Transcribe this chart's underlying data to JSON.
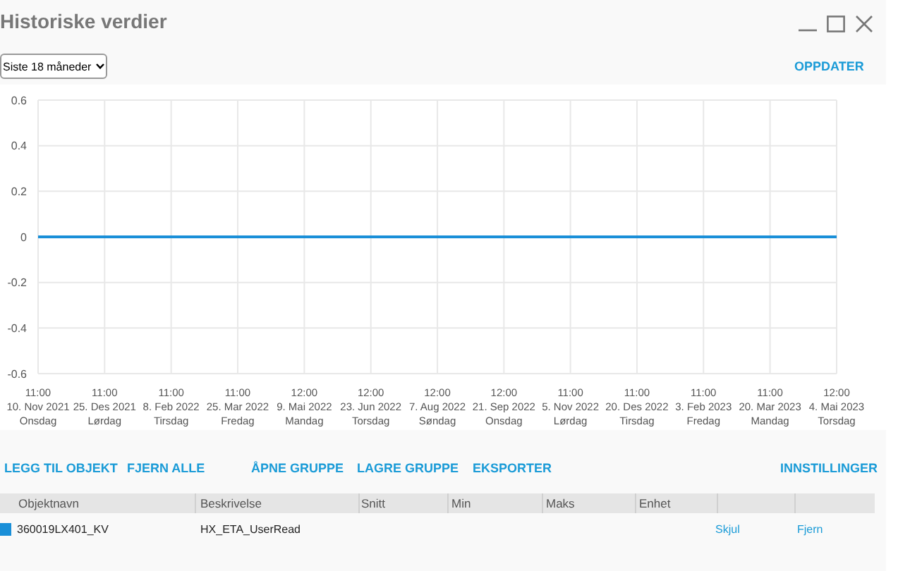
{
  "chart_data": {
    "type": "line",
    "title": "Historiske verdier",
    "x": [
      "2021-11-10T11:00",
      "2023-05-04T12:00"
    ],
    "series": [
      {
        "name": "360019LX401_KV",
        "color": "#1a8fd8",
        "values": [
          0,
          0
        ]
      }
    ],
    "xlim": [
      "2021-11-10T11:00",
      "2023-05-04T12:00"
    ],
    "xticks": [
      {
        "value": "2021-11-10T11:00",
        "label": "11:00\n10. Nov 2021\nOnsdag"
      },
      {
        "value": "2021-12-25T11:00",
        "label": "11:00\n25. Des 2021\nLørdag"
      },
      {
        "value": "2022-02-08T11:00",
        "label": "11:00\n8. Feb 2022\nTirsdag"
      },
      {
        "value": "2022-03-25T11:00",
        "label": "11:00\n25. Mar 2022\nFredag"
      },
      {
        "value": "2022-05-09T12:00",
        "label": "12:00\n9. Mai 2022\nMandag"
      },
      {
        "value": "2022-06-23T12:00",
        "label": "12:00\n23. Jun 2022\nTorsdag"
      },
      {
        "value": "2022-08-07T12:00",
        "label": "12:00\n7. Aug 2022\nSøndag"
      },
      {
        "value": "2022-09-21T12:00",
        "label": "12:00\n21. Sep 2022\nOnsdag"
      },
      {
        "value": "2022-11-05T11:00",
        "label": "11:00\n5. Nov 2022\nLørdag"
      },
      {
        "value": "2022-12-20T11:00",
        "label": "11:00\n20. Des 2022\nTirsdag"
      },
      {
        "value": "2023-02-03T11:00",
        "label": "11:00\n3. Feb 2023\nFredag"
      },
      {
        "value": "2023-03-20T11:00",
        "label": "11:00\n20. Mar 2023\nMandag"
      },
      {
        "value": "2023-05-04T12:00",
        "label": "12:00\n4. Mai 2023\nTorsdag"
      }
    ],
    "ylim": [
      -0.6,
      0.6
    ],
    "yticks": [
      -0.6,
      -0.4,
      -0.2,
      0,
      0.2,
      0.4,
      0.6
    ],
    "grid": true,
    "legend": "bottom",
    "marker": "none",
    "line_style": "solid",
    "annotations": [
      "Siste 18 måneder",
      "OPPDATER",
      "LEGG TIL OBJEKT",
      "FJERN ALLE",
      "ÅPNE GRUPPE",
      "LAGRE GRUPPE",
      "EKSPORTER",
      "INNSTILLINGER",
      "Objektnavn",
      "Beskrivelse",
      "Snitt",
      "Min",
      "Maks",
      "Enhet",
      "HX_ETA_UserRead",
      "Skjul",
      "Fjern"
    ]
  }
}
